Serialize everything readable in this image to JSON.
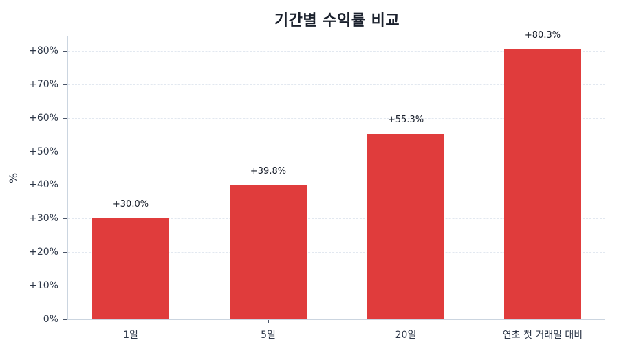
{
  "chart_data": {
    "type": "bar",
    "title": "기간별 수익률 비교",
    "xlabel": "",
    "ylabel": "%",
    "categories": [
      "1일",
      "5일",
      "20일",
      "연초 첫 거래일 대비"
    ],
    "values": [
      30.0,
      39.8,
      55.3,
      80.3
    ],
    "value_labels": [
      "+30.0%",
      "+39.8%",
      "+55.3%",
      "+80.3%"
    ],
    "ylim": [
      0,
      84
    ],
    "yticks": [
      0,
      10,
      20,
      30,
      40,
      50,
      60,
      70,
      80
    ],
    "ytick_labels": [
      "0%",
      "+10%",
      "+20%",
      "+30%",
      "+40%",
      "+50%",
      "+60%",
      "+70%",
      "+80%"
    ],
    "grid": "horizontal dashed",
    "legend": "none",
    "bar_color": "#e03c3c"
  },
  "title": "기간별 수익률 비교",
  "ylabel": "%",
  "yticks": [
    "0%",
    "+10%",
    "+20%",
    "+30%",
    "+40%",
    "+50%",
    "+60%",
    "+70%",
    "+80%"
  ],
  "bars": [
    {
      "category": "1일",
      "value": 30.0,
      "label": "+30.0%"
    },
    {
      "category": "5일",
      "value": 39.8,
      "label": "+39.8%"
    },
    {
      "category": "20일",
      "value": 55.3,
      "label": "+55.3%"
    },
    {
      "category": "연초 첫 거래일 대비",
      "value": 80.3,
      "label": "+80.3%"
    }
  ]
}
